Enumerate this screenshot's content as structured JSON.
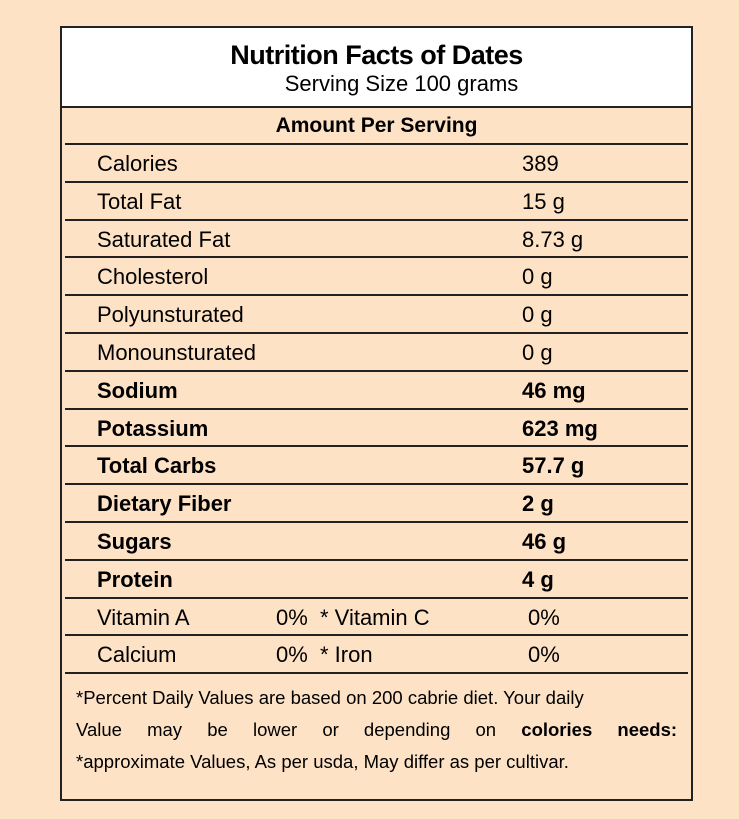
{
  "header": {
    "title": "Nutrition Facts of Dates",
    "subtitle": "Serving Size 100 grams"
  },
  "table": {
    "heading": "Amount Per Serving",
    "rows": [
      {
        "label": "Calories",
        "value": "389",
        "bold": false
      },
      {
        "label": "Total Fat",
        "value": "15 g",
        "bold": false
      },
      {
        "label": "Saturated Fat",
        "value": "8.73 g",
        "bold": false
      },
      {
        "label": "Cholesterol",
        "value": "0 g",
        "bold": false
      },
      {
        "label": "Polyunsturated",
        "value": "0 g",
        "bold": false
      },
      {
        "label": "Monounsturated",
        "value": "0 g",
        "bold": false
      },
      {
        "label": "Sodium",
        "value": "46 mg",
        "bold": true
      },
      {
        "label": "Potassium",
        "value": "623 mg",
        "bold": true
      },
      {
        "label": "Total Carbs",
        "value": "57.7 g",
        "bold": true
      },
      {
        "label": "Dietary Fiber",
        "value": "2 g",
        "bold": true
      },
      {
        "label": "Sugars",
        "value": "46 g",
        "bold": true
      },
      {
        "label": "Protein",
        "value": "4 g",
        "bold": true
      }
    ],
    "vitamin_rows": [
      {
        "label": "Vitamin A",
        "percent": "0%",
        "label2": "* Vitamin C",
        "percent2": "0%"
      },
      {
        "label": "Calcium",
        "percent": "0%",
        "label2": "* Iron",
        "percent2": "0%"
      }
    ]
  },
  "footer": {
    "line1": "*Percent Daily Values are based on 200 cabrie diet.  Your daily",
    "line2": "Value may be lower or depending on",
    "line2_bold": "colories needs:",
    "line3": "*approximate Values, As per usda, May differ as per cultivar."
  }
}
